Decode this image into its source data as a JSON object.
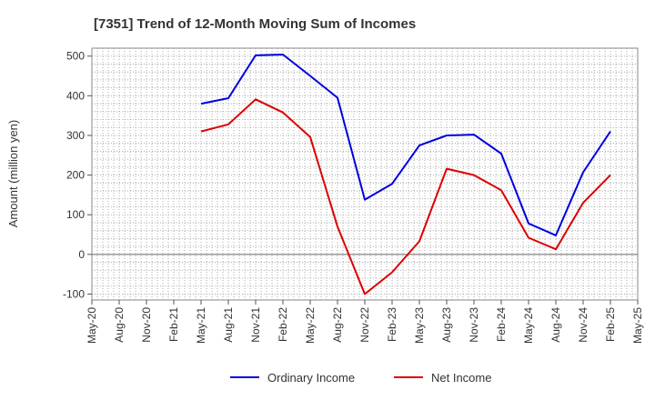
{
  "chart_data": {
    "type": "line",
    "title": "[7351]  Trend of 12-Month Moving Sum of Incomes",
    "xlabel": "",
    "ylabel": "Amount (million yen)",
    "ylim": [
      -115,
      520
    ],
    "yticks": [
      500,
      400,
      300,
      200,
      100,
      0,
      -100
    ],
    "x_tick_labels": [
      "May-20",
      "Aug-20",
      "Nov-20",
      "Feb-21",
      "May-21",
      "Aug-21",
      "Nov-21",
      "Feb-22",
      "May-22",
      "Aug-22",
      "Nov-22",
      "Feb-23",
      "May-23",
      "Aug-23",
      "Nov-23",
      "Feb-24",
      "May-24",
      "Aug-24",
      "Nov-24",
      "Feb-25",
      "May-25"
    ],
    "categories": [
      "May-21",
      "Aug-21",
      "Nov-21",
      "Feb-22",
      "May-22",
      "Aug-22",
      "Nov-22",
      "Feb-23",
      "May-23",
      "Aug-23",
      "Nov-23",
      "Feb-24",
      "May-24",
      "Aug-24",
      "Nov-24",
      "Feb-25"
    ],
    "series": [
      {
        "name": "Ordinary Income",
        "color": "#0000dd",
        "values": [
          380,
          394,
          502,
          504,
          450,
          395,
          138,
          178,
          275,
          300,
          302,
          254,
          78,
          48,
          207,
          310
        ]
      },
      {
        "name": "Net Income",
        "color": "#dd0000",
        "values": [
          310,
          328,
          391,
          358,
          296,
          70,
          -100,
          -45,
          33,
          216,
          200,
          162,
          42,
          13,
          130,
          200
        ]
      }
    ],
    "grid": true,
    "legend_position": "bottom"
  }
}
